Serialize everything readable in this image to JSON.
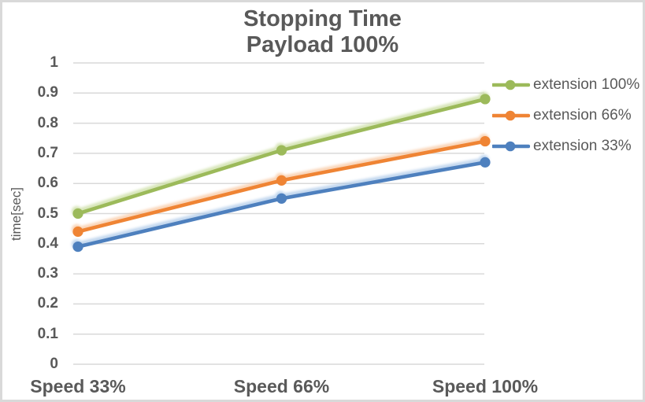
{
  "title": {
    "line1": "Stopping Time",
    "line2": "Payload 100%"
  },
  "y_axis": {
    "label": "time[sec]",
    "tick_labels_top_to_bottom": [
      "1",
      "0.9",
      "0.8",
      "0.7",
      "0.6",
      "0.5",
      "0.4",
      "0.3",
      "0.2",
      "0.1",
      "0"
    ]
  },
  "x_axis": {
    "categories": [
      "Speed 33%",
      "Speed 66%",
      "Speed 100%"
    ]
  },
  "legend": {
    "entries": [
      "extension 100%",
      "extension 66%",
      "extension 33%"
    ]
  },
  "colors": {
    "text": "#595959",
    "gridline": "#d9d9d9",
    "frame_border": "#d9d9d9",
    "series_green": "#9cba5a",
    "series_orange": "#ef8434",
    "series_blue": "#4e80be"
  },
  "chart_data": {
    "type": "line",
    "title": "Stopping Time Payload 100%",
    "categories": [
      "Speed 33%",
      "Speed 66%",
      "Speed 100%"
    ],
    "series": [
      {
        "name": "extension 100%",
        "color": "#9cba5a",
        "glow": "#c8dc9e",
        "values": [
          0.5,
          0.71,
          0.88
        ]
      },
      {
        "name": "extension 66%",
        "color": "#ef8434",
        "glow": "#f8c59c",
        "values": [
          0.44,
          0.61,
          0.74
        ]
      },
      {
        "name": "extension 33%",
        "color": "#4e80be",
        "glow": "#abc8e8",
        "values": [
          0.39,
          0.55,
          0.67
        ]
      }
    ],
    "xlabel": "",
    "ylabel": "time[sec]",
    "ylim": [
      0,
      1
    ],
    "ytick_step": 0.1,
    "grid": true,
    "legend_position": "right",
    "marker": "circle"
  }
}
